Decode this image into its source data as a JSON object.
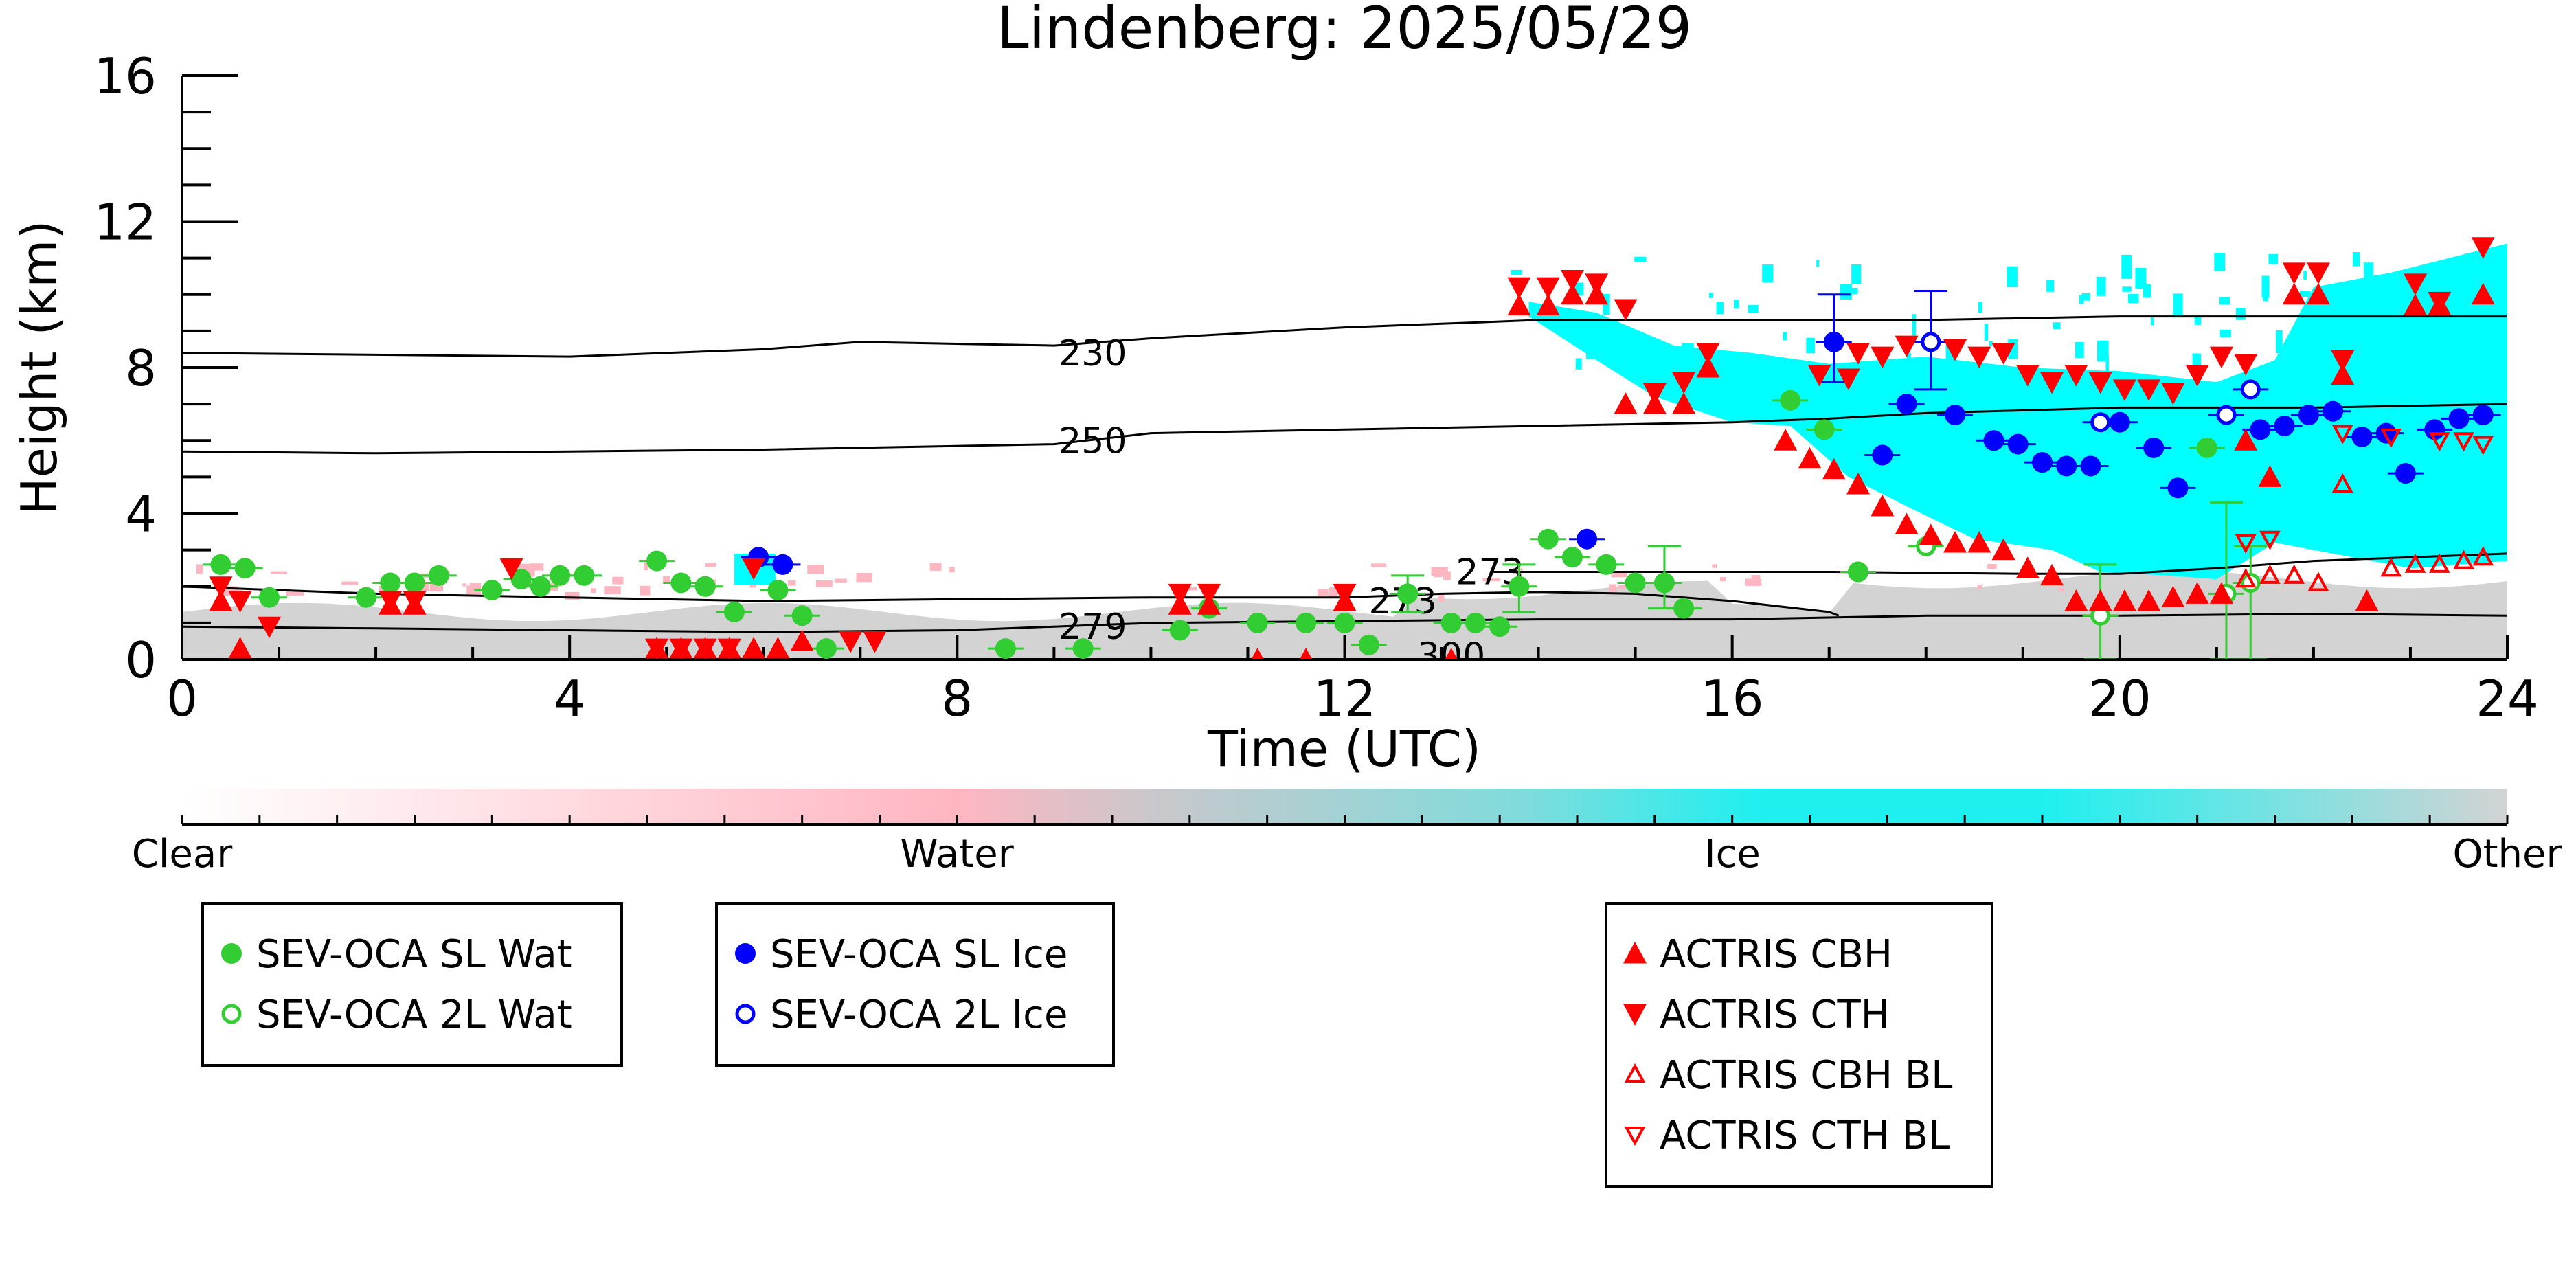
{
  "chart_data": {
    "type": "scatter",
    "title": "Lindenberg: 2025/05/29",
    "xlabel": "Time (UTC)",
    "ylabel": "Height (km)",
    "xlim": [
      0,
      24
    ],
    "ylim": [
      0,
      16
    ],
    "x_ticks": [
      "0",
      "4",
      "8",
      "12",
      "16",
      "20",
      "24"
    ],
    "y_ticks": [
      "0",
      "4",
      "8",
      "12",
      "16"
    ],
    "grid": false,
    "colorbar": {
      "labels": [
        "Clear",
        "Water",
        "Ice",
        "Other"
      ],
      "colors": [
        "#ffffff",
        "#ffb6c1",
        "#1ef0f0",
        "#d3d3d3"
      ]
    },
    "colors": {
      "sev_water": "#32cd32",
      "sev_ice": "#0000ff",
      "actris": "#ff0000",
      "ice_cloud": "#00ffff",
      "water_cloud": "#ffb6c1",
      "other_cloud": "#d3d3d3"
    },
    "isotherms": [
      {
        "label": "230",
        "label_at": [
          9.4,
          8.4
        ],
        "x": [
          0,
          2,
          4,
          6,
          7,
          8,
          9,
          10,
          12,
          13,
          14,
          16,
          18,
          20,
          22,
          24
        ],
        "y": [
          8.4,
          8.35,
          8.3,
          8.5,
          8.7,
          8.65,
          8.6,
          8.8,
          9.1,
          9.2,
          9.3,
          9.3,
          9.3,
          9.4,
          9.4,
          9.4
        ]
      },
      {
        "label": "250",
        "label_at": [
          9.4,
          6.0
        ],
        "x": [
          0,
          2,
          4,
          6,
          8,
          9,
          10,
          12,
          14,
          16,
          17,
          18,
          20,
          22,
          24
        ],
        "y": [
          5.7,
          5.65,
          5.7,
          5.75,
          5.85,
          5.9,
          6.2,
          6.3,
          6.4,
          6.5,
          6.6,
          6.75,
          6.9,
          6.9,
          7.0
        ]
      },
      {
        "label": "273",
        "label_at": [
          12.6,
          1.6
        ],
        "x": [
          0,
          2,
          4,
          6,
          8,
          10,
          12,
          13,
          14,
          15,
          16,
          17,
          17.1
        ],
        "y": [
          2.0,
          1.8,
          1.7,
          1.6,
          1.65,
          1.7,
          1.7,
          1.8,
          1.85,
          1.8,
          1.6,
          1.3,
          1.2
        ]
      },
      {
        "label": "273",
        "label_at": [
          13.5,
          2.4
        ],
        "x": [
          13.5,
          15,
          17,
          19,
          20,
          21,
          22,
          23,
          24
        ],
        "y": [
          2.4,
          2.4,
          2.4,
          2.35,
          2.35,
          2.5,
          2.7,
          2.8,
          2.9
        ]
      },
      {
        "label": "279",
        "label_at": [
          9.4,
          0.9
        ],
        "x": [
          0,
          2,
          4,
          6,
          8,
          9,
          10,
          12,
          14,
          16,
          18,
          20,
          22,
          24
        ],
        "y": [
          0.9,
          0.85,
          0.8,
          0.75,
          0.8,
          0.9,
          1.0,
          1.05,
          1.1,
          1.1,
          1.2,
          1.2,
          1.25,
          1.2
        ]
      },
      {
        "label": "300",
        "label_at": [
          13.1,
          0.1
        ],
        "x": [],
        "y": []
      }
    ],
    "series": [
      {
        "name": "SEV-OCA SL Wat",
        "points": [
          [
            0.4,
            2.6
          ],
          [
            0.65,
            2.5
          ],
          [
            0.9,
            1.7
          ],
          [
            1.9,
            1.7
          ],
          [
            2.15,
            2.1
          ],
          [
            2.4,
            2.1
          ],
          [
            2.65,
            2.3
          ],
          [
            3.2,
            1.9
          ],
          [
            3.5,
            2.2
          ],
          [
            3.7,
            2.0
          ],
          [
            3.9,
            2.3
          ],
          [
            4.15,
            2.3
          ],
          [
            4.9,
            2.7
          ],
          [
            5.15,
            2.1
          ],
          [
            5.4,
            2.0
          ],
          [
            5.7,
            1.3
          ],
          [
            6.15,
            1.9
          ],
          [
            6.4,
            1.2
          ],
          [
            6.65,
            0.3
          ],
          [
            8.5,
            0.3
          ],
          [
            9.3,
            0.3
          ],
          [
            10.3,
            0.8
          ],
          [
            10.6,
            1.4
          ],
          [
            11.1,
            1.0
          ],
          [
            11.6,
            1.0
          ],
          [
            12.0,
            1.0
          ],
          [
            12.25,
            0.4
          ],
          [
            12.65,
            1.8
          ],
          [
            13.1,
            1.0
          ],
          [
            13.35,
            1.0
          ],
          [
            13.6,
            0.9
          ],
          [
            13.8,
            2.0
          ],
          [
            14.1,
            3.3
          ],
          [
            14.35,
            2.8
          ],
          [
            14.7,
            2.6
          ],
          [
            15.0,
            2.1
          ],
          [
            15.3,
            2.1
          ],
          [
            15.5,
            1.4
          ],
          [
            16.6,
            7.1
          ],
          [
            16.95,
            6.3
          ],
          [
            17.3,
            2.4
          ],
          [
            20.9,
            5.8
          ]
        ],
        "err": [
          [
            12.65,
            1.3,
            2.3
          ],
          [
            13.8,
            1.3,
            2.6
          ],
          [
            15.3,
            1.4,
            3.1
          ]
        ]
      },
      {
        "name": "SEV-OCA 2L Wat",
        "points": [
          [
            18.0,
            3.1
          ],
          [
            19.8,
            1.2
          ],
          [
            21.1,
            1.8
          ],
          [
            21.35,
            2.1
          ]
        ],
        "err": [
          [
            19.8,
            0.0,
            2.6
          ],
          [
            21.1,
            0.0,
            4.3
          ],
          [
            21.35,
            0.0,
            3.1
          ]
        ]
      },
      {
        "name": "SEV-OCA SL Ice",
        "points": [
          [
            5.95,
            2.8
          ],
          [
            6.2,
            2.6
          ],
          [
            14.5,
            3.3
          ],
          [
            17.05,
            8.7
          ],
          [
            17.55,
            5.6
          ],
          [
            17.8,
            7.0
          ],
          [
            18.3,
            6.7
          ],
          [
            18.7,
            6.0
          ],
          [
            18.95,
            5.9
          ],
          [
            19.2,
            5.4
          ],
          [
            19.45,
            5.3
          ],
          [
            19.7,
            5.3
          ],
          [
            20.0,
            6.5
          ],
          [
            20.35,
            5.8
          ],
          [
            20.6,
            4.7
          ],
          [
            21.45,
            6.3
          ],
          [
            21.7,
            6.4
          ],
          [
            21.95,
            6.7
          ],
          [
            22.2,
            6.8
          ],
          [
            22.5,
            6.1
          ],
          [
            22.75,
            6.2
          ],
          [
            22.95,
            5.1
          ],
          [
            23.25,
            6.3
          ],
          [
            23.5,
            6.6
          ],
          [
            23.75,
            6.7
          ]
        ],
        "err": [
          [
            17.05,
            7.6,
            10.0
          ]
        ]
      },
      {
        "name": "SEV-OCA 2L Ice",
        "points": [
          [
            18.05,
            8.7
          ],
          [
            19.8,
            6.5
          ],
          [
            21.1,
            6.7
          ],
          [
            21.35,
            7.4
          ]
        ],
        "err": [
          [
            18.05,
            7.4,
            10.1
          ]
        ]
      },
      {
        "name": "ACTRIS CBH",
        "points": [
          [
            0.4,
            1.6
          ],
          [
            0.6,
            0.3
          ],
          [
            2.15,
            1.5
          ],
          [
            2.4,
            1.5
          ],
          [
            4.9,
            0.3
          ],
          [
            5.15,
            0.3
          ],
          [
            5.4,
            0.3
          ],
          [
            5.65,
            0.3
          ],
          [
            5.9,
            0.3
          ],
          [
            6.15,
            0.3
          ],
          [
            6.4,
            0.5
          ],
          [
            10.3,
            1.5
          ],
          [
            10.6,
            1.5
          ],
          [
            11.1,
            0.0
          ],
          [
            11.6,
            0.0
          ],
          [
            12.0,
            1.6
          ],
          [
            13.1,
            0.0
          ],
          [
            13.8,
            9.7
          ],
          [
            14.1,
            9.7
          ],
          [
            14.35,
            10.0
          ],
          [
            14.6,
            10.0
          ],
          [
            14.9,
            7.0
          ],
          [
            15.2,
            7.0
          ],
          [
            15.5,
            7.0
          ],
          [
            15.75,
            8.0
          ],
          [
            16.55,
            6.0
          ],
          [
            16.8,
            5.5
          ],
          [
            17.05,
            5.2
          ],
          [
            17.3,
            4.8
          ],
          [
            17.55,
            4.2
          ],
          [
            17.8,
            3.7
          ],
          [
            18.05,
            3.4
          ],
          [
            18.3,
            3.2
          ],
          [
            18.55,
            3.2
          ],
          [
            18.8,
            3.0
          ],
          [
            19.05,
            2.5
          ],
          [
            19.3,
            2.3
          ],
          [
            19.55,
            1.6
          ],
          [
            19.8,
            1.6
          ],
          [
            20.05,
            1.6
          ],
          [
            20.3,
            1.6
          ],
          [
            20.55,
            1.7
          ],
          [
            20.8,
            1.8
          ],
          [
            21.05,
            1.8
          ],
          [
            21.3,
            6.0
          ],
          [
            21.55,
            5.0
          ],
          [
            21.8,
            10.0
          ],
          [
            22.05,
            10.0
          ],
          [
            22.3,
            7.8
          ],
          [
            22.55,
            1.6
          ],
          [
            23.05,
            9.7
          ],
          [
            23.3,
            9.7
          ],
          [
            23.75,
            10.0
          ]
        ]
      },
      {
        "name": "ACTRIS CTH",
        "points": [
          [
            0.4,
            2.0
          ],
          [
            0.9,
            0.9
          ],
          [
            0.6,
            1.6
          ],
          [
            2.15,
            1.6
          ],
          [
            2.4,
            1.6
          ],
          [
            3.4,
            2.5
          ],
          [
            4.9,
            0.3
          ],
          [
            5.15,
            0.3
          ],
          [
            5.4,
            0.3
          ],
          [
            5.65,
            0.3
          ],
          [
            5.9,
            2.5
          ],
          [
            6.9,
            0.5
          ],
          [
            7.15,
            0.5
          ],
          [
            10.3,
            1.8
          ],
          [
            10.6,
            1.8
          ],
          [
            12.0,
            1.8
          ],
          [
            13.8,
            10.2
          ],
          [
            14.1,
            10.2
          ],
          [
            14.35,
            10.4
          ],
          [
            14.6,
            10.3
          ],
          [
            14.9,
            9.6
          ],
          [
            15.2,
            7.3
          ],
          [
            15.5,
            7.6
          ],
          [
            15.75,
            8.4
          ],
          [
            16.9,
            7.8
          ],
          [
            17.2,
            7.7
          ],
          [
            17.3,
            8.4
          ],
          [
            17.55,
            8.3
          ],
          [
            17.8,
            8.6
          ],
          [
            18.3,
            8.5
          ],
          [
            18.55,
            8.3
          ],
          [
            18.8,
            8.4
          ],
          [
            19.05,
            7.8
          ],
          [
            19.3,
            7.6
          ],
          [
            19.55,
            7.8
          ],
          [
            19.8,
            7.6
          ],
          [
            20.05,
            7.4
          ],
          [
            20.3,
            7.4
          ],
          [
            20.55,
            7.3
          ],
          [
            20.8,
            7.8
          ],
          [
            21.05,
            8.3
          ],
          [
            21.3,
            8.1
          ],
          [
            21.8,
            10.6
          ],
          [
            22.05,
            10.6
          ],
          [
            22.3,
            8.2
          ],
          [
            23.05,
            10.3
          ],
          [
            23.3,
            9.8
          ],
          [
            23.75,
            11.3
          ]
        ]
      },
      {
        "name": "ACTRIS CBH BL",
        "points": [
          [
            21.3,
            2.2
          ],
          [
            21.55,
            2.3
          ],
          [
            21.8,
            2.3
          ],
          [
            22.05,
            2.1
          ],
          [
            22.3,
            4.8
          ],
          [
            22.8,
            2.5
          ],
          [
            23.05,
            2.6
          ],
          [
            23.3,
            2.6
          ],
          [
            23.55,
            2.7
          ],
          [
            23.75,
            2.8
          ]
        ]
      },
      {
        "name": "ACTRIS CTH BL",
        "points": [
          [
            21.3,
            3.2
          ],
          [
            21.55,
            3.3
          ],
          [
            22.3,
            6.2
          ],
          [
            22.8,
            6.1
          ],
          [
            23.3,
            6.0
          ],
          [
            23.55,
            6.0
          ],
          [
            23.75,
            5.9
          ]
        ]
      }
    ]
  }
}
